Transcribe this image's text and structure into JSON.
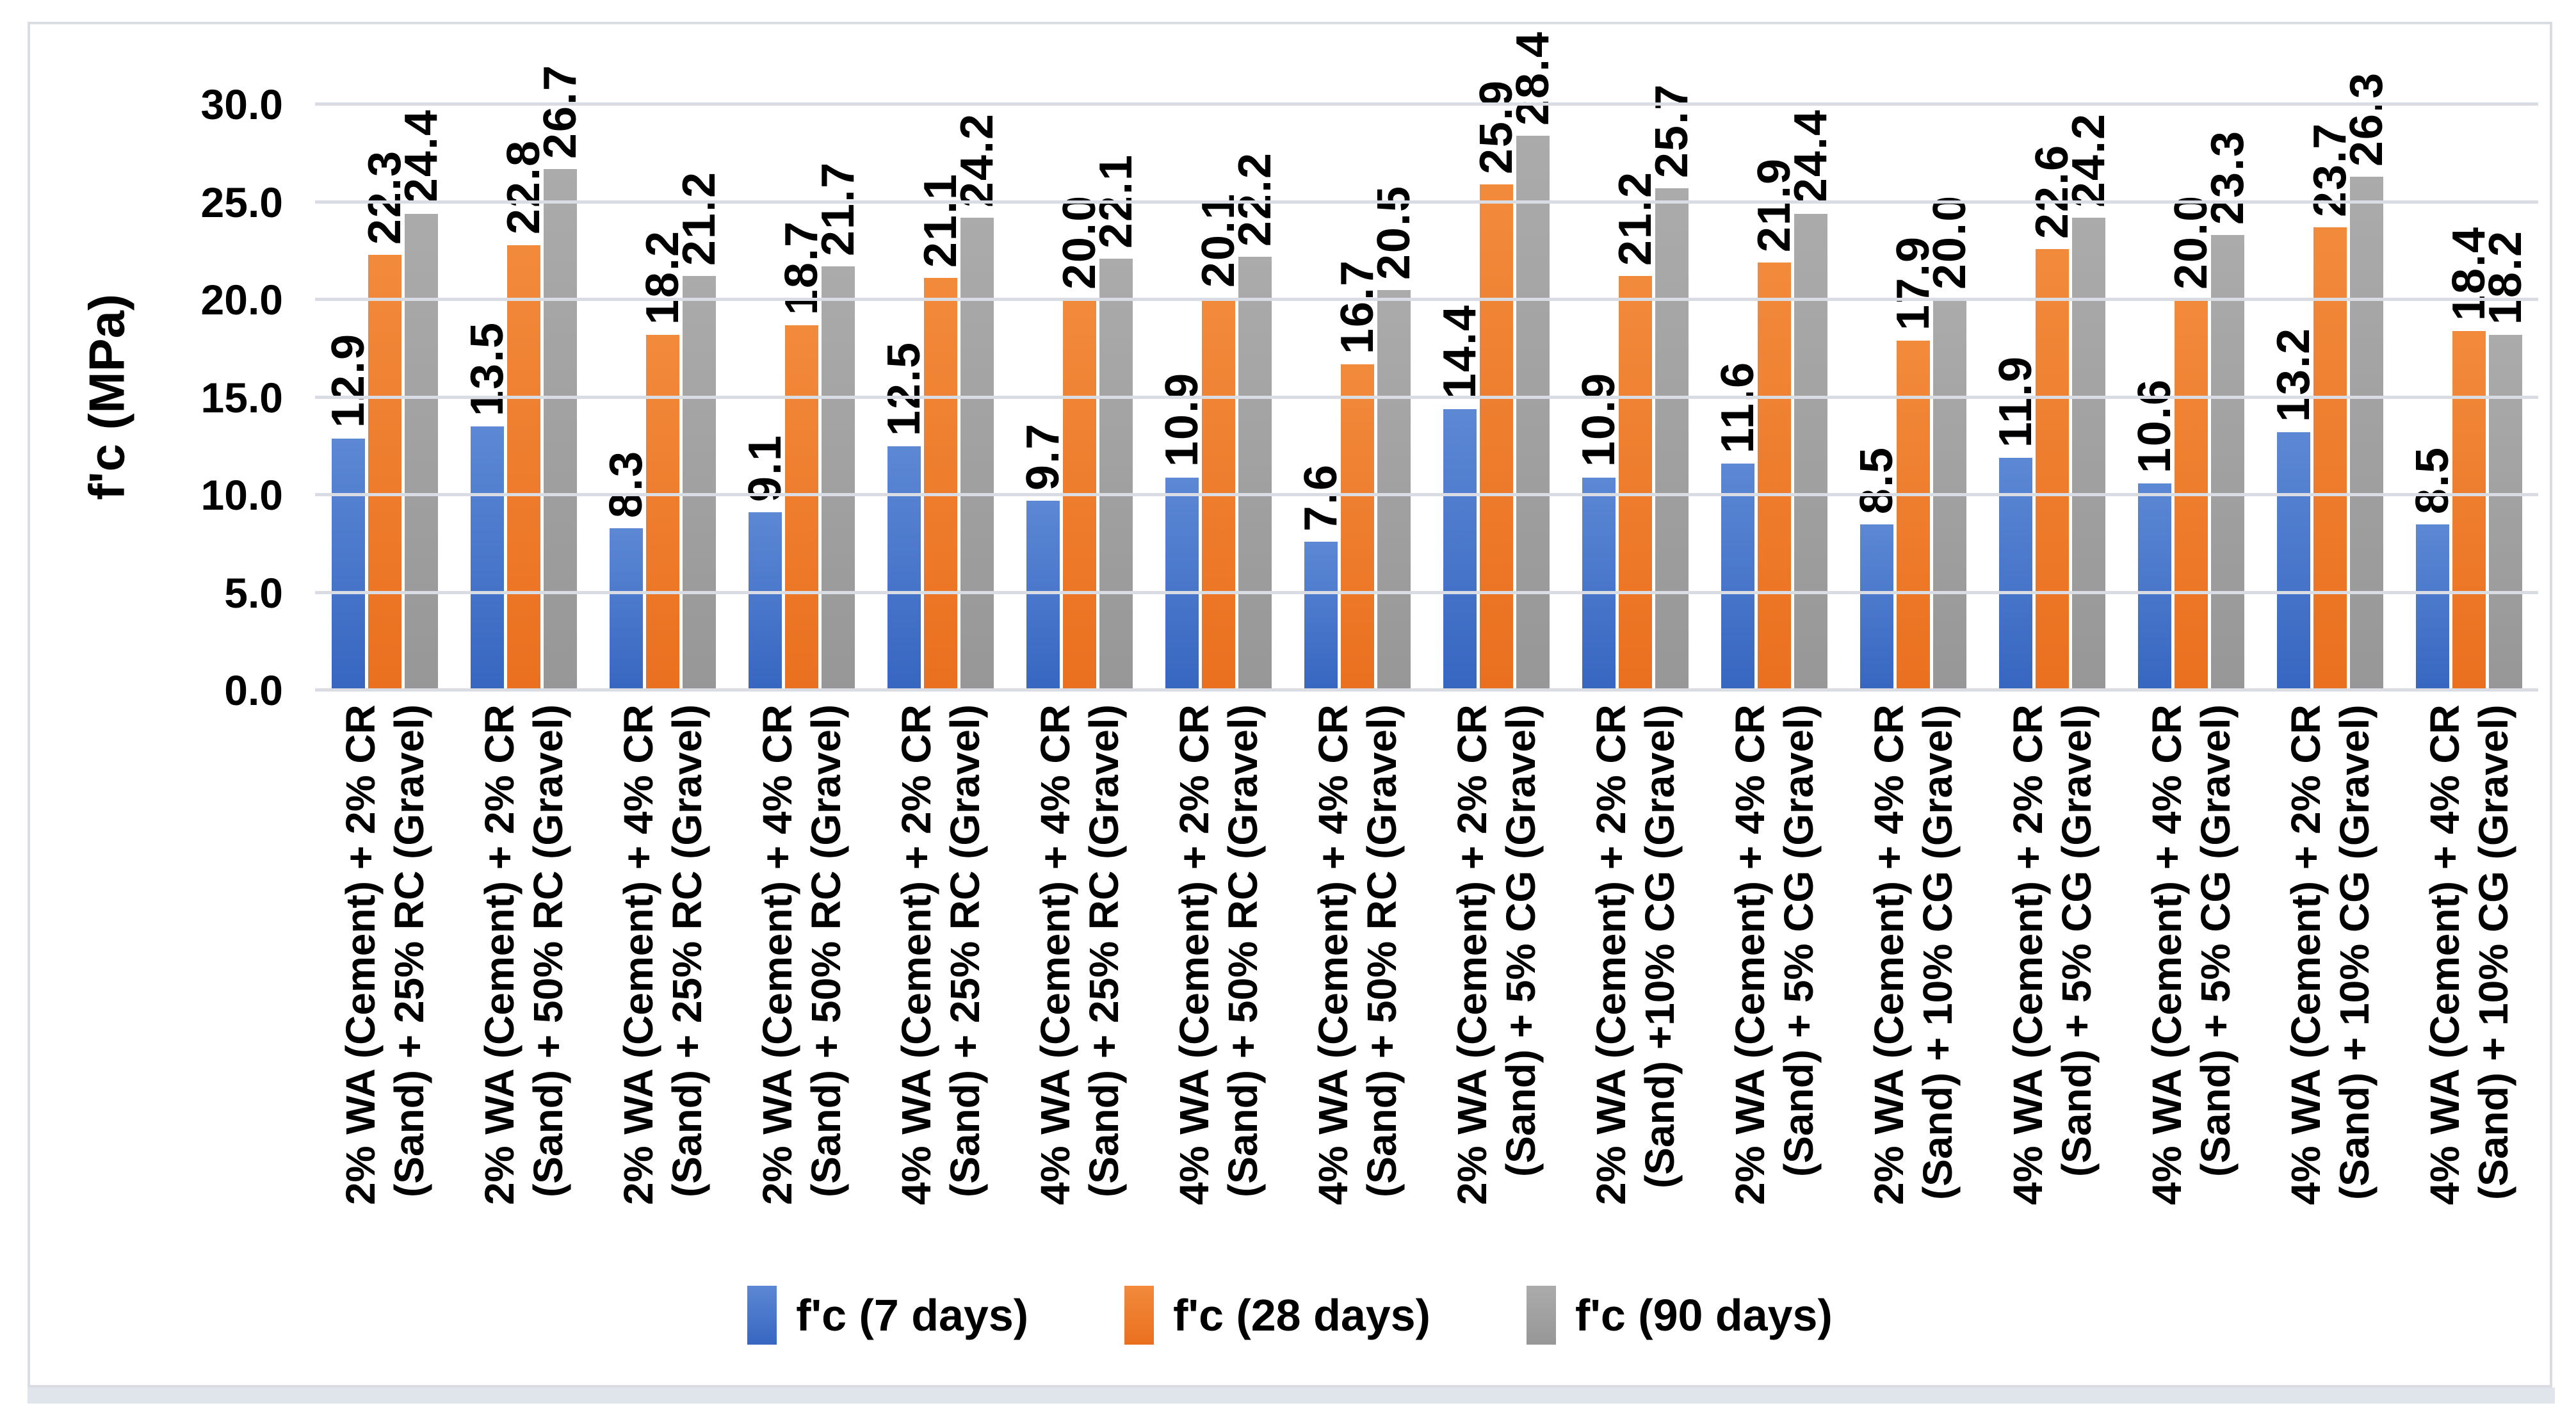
{
  "colors": {
    "frame_border": "#D9DDE3",
    "gridline": "#D9DDE3",
    "window_strip": "#E0E4EB",
    "series_blue_top": "#5C88D4",
    "series_blue_bottom": "#3766C1",
    "series_orange_top": "#F28A3C",
    "series_orange_bottom": "#EA701F",
    "series_gray_top": "#ABABAB",
    "series_gray_bottom": "#979797"
  },
  "chart_data": {
    "type": "bar",
    "title": "",
    "xlabel": "",
    "ylabel": "f'c (MPa)",
    "ylim": [
      0,
      30
    ],
    "ytick_values": [
      0,
      5,
      10,
      15,
      20,
      25,
      30
    ],
    "ytick_labels": [
      "0.0",
      "5.0",
      "10.0",
      "15.0",
      "20.0",
      "25.0",
      "30.0"
    ],
    "grid": true,
    "legend_position": "bottom",
    "value_label_decimals": 1,
    "categories": [
      "2% WA (Cement) + 2% CR\n(Sand) + 25% RC (Gravel)",
      "2% WA (Cement) + 2% CR\n(Sand) + 50% RC (Gravel)",
      "2% WA (Cement) + 4% CR\n(Sand) + 25% RC (Gravel)",
      "2% WA (Cement) + 4% CR\n(Sand) + 50% RC (Gravel)",
      "4% WA (Cement) + 2% CR\n(Sand) + 25% RC (Gravel)",
      "4% WA (Cement) + 4% CR\n(Sand) + 25% RC (Gravel)",
      "4% WA (Cement) + 2% CR\n(Sand) + 50% RC (Gravel)",
      "4% WA (Cement) + 4% CR\n(Sand) + 50% RC (Gravel)",
      "2% WA (Cement) + 2% CR\n(Sand) + 5% CG (Gravel)",
      "2% WA (Cement) + 2% CR\n(Sand) +10% CG (Gravel)",
      "2% WA (Cement) + 4% CR\n(Sand) + 5% CG (Gravel)",
      "2% WA (Cement) + 4% CR\n(Sand) + 10% CG (Gravel)",
      "4% WA (Cement) + 2% CR\n(Sand) + 5% CG (Gravel)",
      "4% WA (Cement) + 4% CR\n(Sand) + 5% CG (Gravel)",
      "4% WA (Cement) + 2% CR\n(Sand) + 10% CG (Gravel)",
      "4% WA (Cement) + 4% CR\n(Sand) + 10% CG (Gravel)"
    ],
    "series": [
      {
        "name": "f'c (7 days)",
        "color_key": "blue",
        "values": [
          12.9,
          13.5,
          8.3,
          9.1,
          12.5,
          9.7,
          10.9,
          7.6,
          14.4,
          10.9,
          11.6,
          8.5,
          11.9,
          10.6,
          13.2,
          8.5
        ]
      },
      {
        "name": "f'c (28 days)",
        "color_key": "orange",
        "values": [
          22.3,
          22.8,
          18.2,
          18.7,
          21.1,
          20.0,
          20.1,
          16.7,
          25.9,
          21.2,
          21.9,
          17.9,
          22.6,
          20.0,
          23.7,
          18.4
        ]
      },
      {
        "name": "f'c (90 days)",
        "color_key": "gray",
        "values": [
          24.4,
          26.7,
          21.2,
          21.7,
          24.2,
          22.1,
          22.2,
          20.5,
          28.4,
          25.7,
          24.4,
          20.0,
          24.2,
          23.3,
          26.3,
          18.2
        ]
      }
    ]
  }
}
